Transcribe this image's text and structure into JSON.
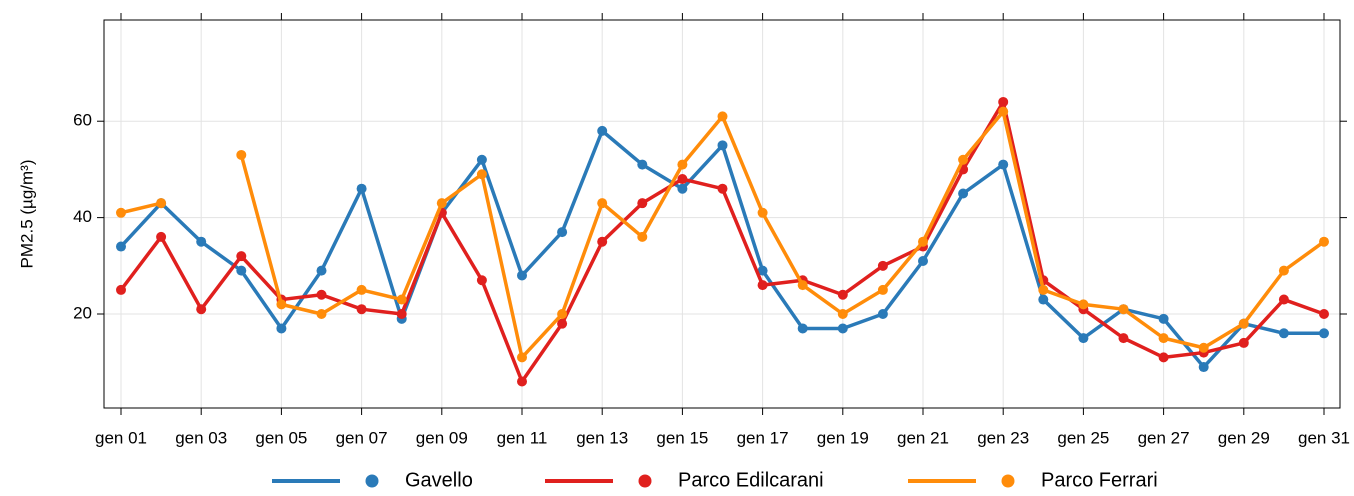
{
  "chart_data": {
    "type": "line",
    "y_label": "PM2.5 (µg/m³)",
    "categories": [
      "gen 01",
      null,
      "gen 03",
      null,
      "gen 05",
      null,
      "gen 07",
      null,
      "gen 09",
      null,
      "gen 11",
      null,
      "gen 13",
      null,
      "gen 15",
      null,
      "gen 17",
      null,
      "gen 19",
      null,
      "gen 21",
      null,
      "gen 23",
      null,
      "gen 25",
      null,
      "gen 27",
      null,
      "gen 29",
      null,
      "gen 31"
    ],
    "series": [
      {
        "name": "Gavello",
        "color": "#2a7ab8",
        "values": [
          34,
          43,
          35,
          29,
          17,
          29,
          46,
          19,
          41,
          52,
          28,
          37,
          58,
          51,
          46,
          55,
          29,
          17,
          17,
          20,
          31,
          45,
          51,
          23,
          15,
          21,
          19,
          9,
          18,
          16,
          16
        ]
      },
      {
        "name": "Parco Edilcarani",
        "color": "#e0201e",
        "values": [
          25,
          36,
          21,
          32,
          23,
          24,
          21,
          20,
          41,
          27,
          6,
          18,
          35,
          43,
          48,
          46,
          26,
          27,
          24,
          30,
          34,
          50,
          64,
          27,
          21,
          15,
          11,
          12,
          14,
          23,
          20
        ]
      },
      {
        "name": "Parco Ferrari",
        "color": "#ff8c0a",
        "values": [
          41,
          43,
          null,
          53,
          22,
          20,
          25,
          23,
          43,
          49,
          11,
          20,
          43,
          36,
          51,
          61,
          41,
          26,
          20,
          25,
          35,
          52,
          62,
          25,
          22,
          21,
          15,
          13,
          18,
          29,
          35
        ]
      }
    ],
    "ylim": [
      0.5,
      81
    ],
    "yticks": [
      20,
      40,
      60
    ],
    "grid": true,
    "legend": "bottom"
  }
}
